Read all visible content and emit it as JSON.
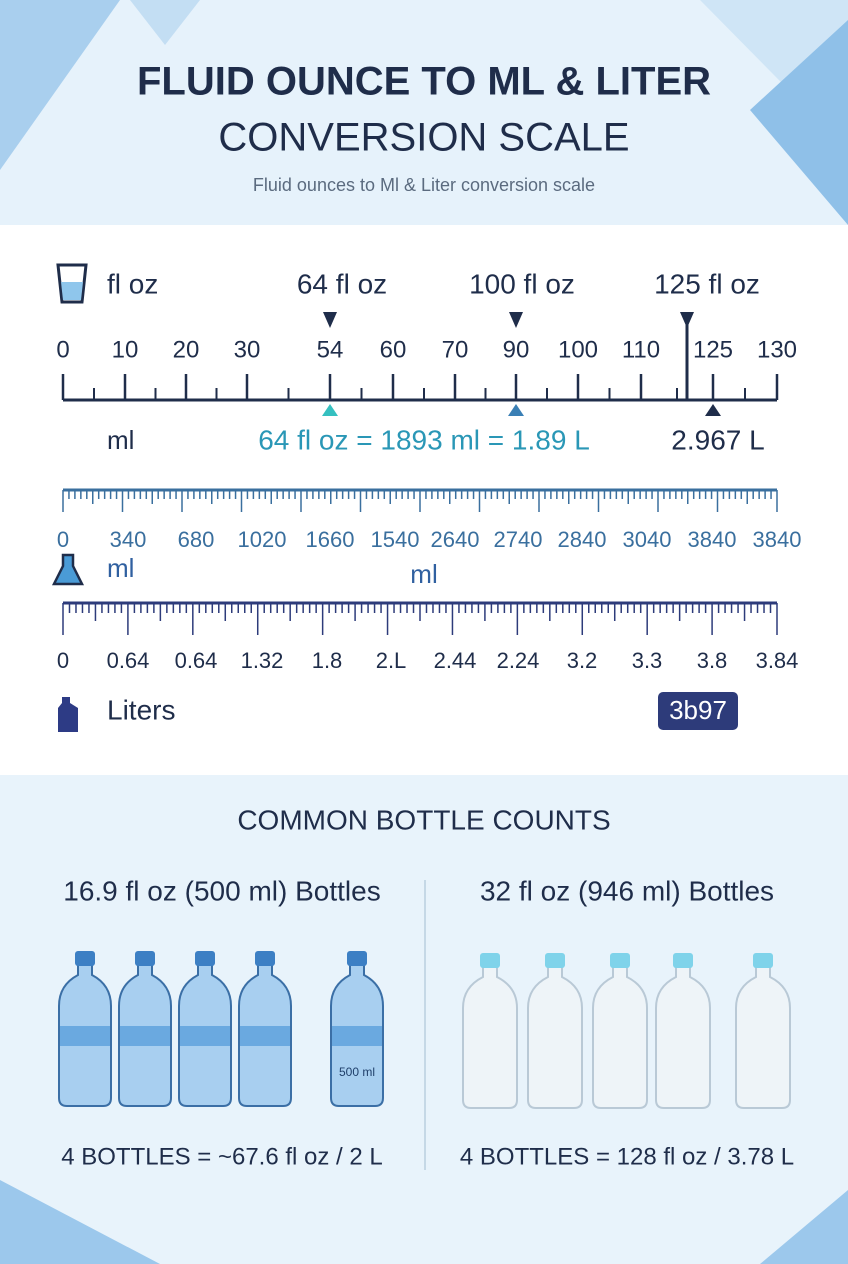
{
  "header": {
    "title_line1": "FLUID OUNCE TO ML & LITER",
    "title_line2": "CONVERSION SCALE",
    "subtitle": "Fluid ounces to Ml & Liter conversion scale"
  },
  "scale": {
    "floz_label": "fl oz",
    "markers": [
      "64 fl oz",
      "100 fl oz",
      "125 fl oz"
    ],
    "floz_ticks": [
      "0",
      "10",
      "20",
      "30",
      "54",
      "60",
      "70",
      "90",
      "100",
      "110",
      "125",
      "130"
    ],
    "ml_label_left": "ml",
    "equation": "64 fl oz = 1893 ml = 1.89 L",
    "liters_readout": "2.967 L",
    "ml_ticks": [
      "0",
      "340",
      "680",
      "1020",
      "1660",
      "1540",
      "2640",
      "2740",
      "2840",
      "3040",
      "3840",
      "3840"
    ],
    "ml_label": "ml",
    "ml_center_label": "ml",
    "liter_ticks": [
      "0",
      "0.64",
      "0.64",
      "1.32",
      "1.8",
      "2.L",
      "2.44",
      "2.24",
      "3.2",
      "3.3",
      "3.8",
      "3.84"
    ],
    "liters_label": "Liters",
    "badge": "3b97"
  },
  "bottles": {
    "title": "COMMON BOTTLE COUNTS",
    "left": {
      "heading": "16.9 fl oz (500 ml) Bottles",
      "bottle_label": "500 ml",
      "summary": "4 BOTTLES = ~67.6 fl oz / 2 L"
    },
    "right": {
      "heading": "32 fl oz (946 ml) Bottles",
      "summary": "4 BOTTLES = 128 fl oz / 3.78 L"
    }
  }
}
